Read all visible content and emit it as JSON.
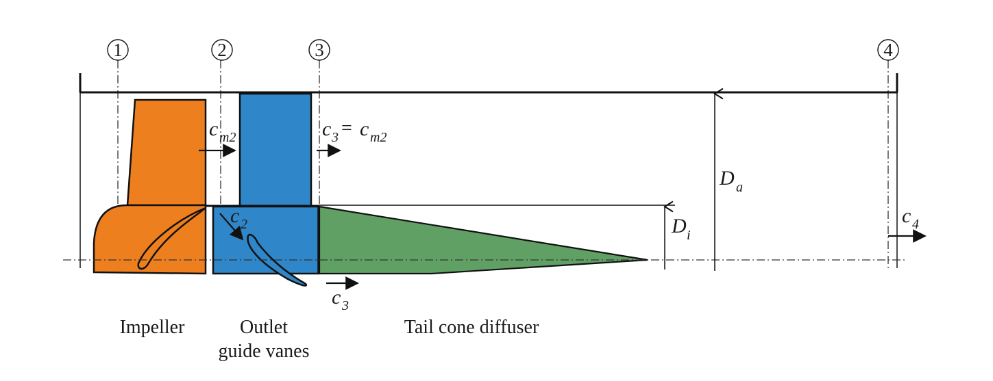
{
  "stations": [
    "1",
    "2",
    "3",
    "4"
  ],
  "components": {
    "impeller": "Impeller",
    "outlet_guide_vanes_line1": "Outlet",
    "outlet_guide_vanes_line2": "guide vanes",
    "tail_cone_diffuser": "Tail cone diffuser"
  },
  "velocities": {
    "cm2": {
      "base": "c",
      "sub": "m2"
    },
    "c3_eq": {
      "base": "c",
      "sub": "3",
      "eq": "= ",
      "rhs_base": "c",
      "rhs_sub": "m2"
    },
    "c2": {
      "base": "c",
      "sub": "2"
    },
    "c3": {
      "base": "c",
      "sub": "3"
    },
    "c4": {
      "base": "c",
      "sub": "4"
    }
  },
  "diameters": {
    "Da": {
      "base": "D",
      "sub": "a"
    },
    "Di": {
      "base": "D",
      "sub": "i"
    }
  },
  "colors": {
    "impeller": "#ee7f1f",
    "guide_vanes": "#2f86c8",
    "tail_cone": "#60a064",
    "outline": "#111111"
  }
}
